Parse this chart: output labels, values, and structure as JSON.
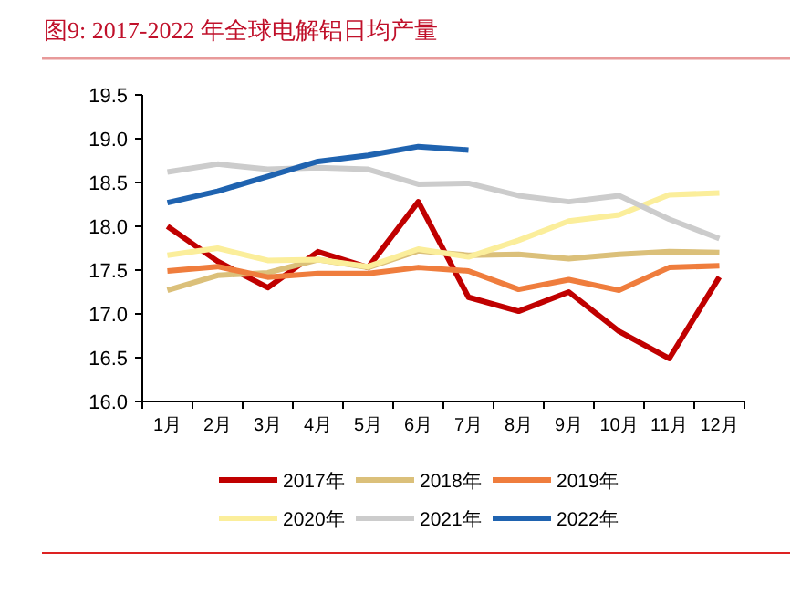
{
  "chart_data": {
    "type": "line",
    "title": "图9:    2017-2022 年全球电解铝日均产量",
    "categories": [
      "1月",
      "2月",
      "3月",
      "4月",
      "5月",
      "6月",
      "7月",
      "8月",
      "9月",
      "10月",
      "11月",
      "12月"
    ],
    "series": [
      {
        "name": "2017年",
        "color": "#c00000",
        "values": [
          18.0,
          17.6,
          17.3,
          17.71,
          17.53,
          18.28,
          17.19,
          17.03,
          17.25,
          16.8,
          16.49,
          17.42
        ]
      },
      {
        "name": "2018年",
        "color": "#dbc07a",
        "values": [
          17.27,
          17.44,
          17.47,
          17.62,
          17.53,
          17.72,
          17.67,
          17.68,
          17.63,
          17.68,
          17.71,
          17.7
        ]
      },
      {
        "name": "2019年",
        "color": "#ef7d3d",
        "values": [
          17.49,
          17.54,
          17.42,
          17.46,
          17.46,
          17.53,
          17.49,
          17.28,
          17.39,
          17.27,
          17.53,
          17.55
        ]
      },
      {
        "name": "2020年",
        "color": "#fbee9b",
        "values": [
          17.67,
          17.75,
          17.61,
          17.62,
          17.54,
          17.74,
          17.65,
          17.84,
          18.06,
          18.13,
          18.36,
          18.38
        ]
      },
      {
        "name": "2021年",
        "color": "#cccccc",
        "values": [
          18.62,
          18.71,
          18.65,
          18.67,
          18.65,
          18.48,
          18.49,
          18.35,
          18.28,
          18.35,
          18.08,
          17.86
        ]
      },
      {
        "name": "2022年",
        "color": "#1f63b0",
        "values": [
          18.27,
          18.4,
          18.57,
          18.74,
          18.81,
          18.91,
          18.87,
          null,
          null,
          null,
          null,
          null
        ]
      }
    ],
    "ylim": [
      16,
      19.5
    ],
    "yticks": [
      {
        "value": 16,
        "label": "16.0"
      },
      {
        "value": 16.5,
        "label": "16.5"
      },
      {
        "value": 17,
        "label": "17.0"
      },
      {
        "value": 17.5,
        "label": "17.5"
      },
      {
        "value": 18,
        "label": "18.0"
      },
      {
        "value": 18.5,
        "label": "18.5"
      },
      {
        "value": 19,
        "label": "19.0"
      },
      {
        "value": 19.5,
        "label": "19.5"
      }
    ],
    "legend": "bottom",
    "grid": false,
    "marker": "none",
    "line_style": "solid"
  }
}
